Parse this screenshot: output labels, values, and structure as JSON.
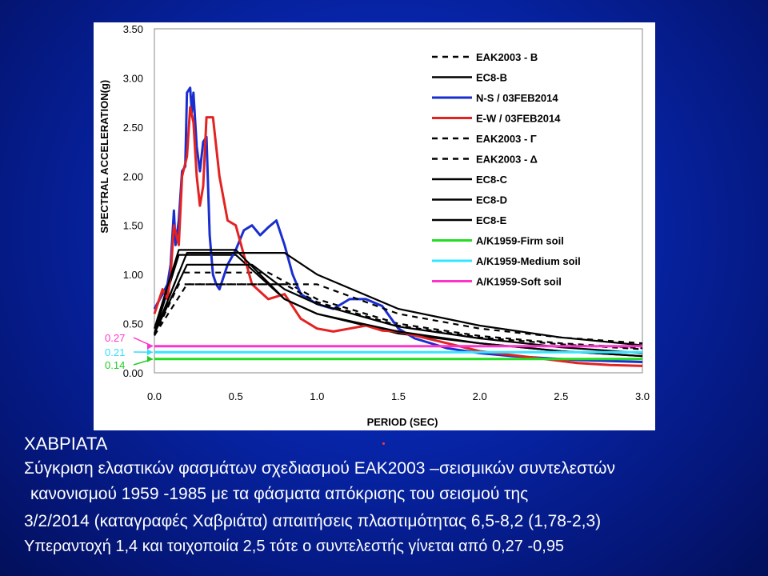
{
  "chart_data": {
    "type": "line",
    "xlabel": "PERIOD (SEC)",
    "ylabel": "SPECTRAL ACCELERATION(g)",
    "xlim": [
      0,
      3.0
    ],
    "ylim": [
      0,
      3.5
    ],
    "x_ticks": [
      "0.0",
      "0.5",
      "1.0",
      "1.5",
      "2.0",
      "2.5",
      "3.0"
    ],
    "y_ticks": [
      "0.00",
      "0.50",
      "1.00",
      "1.50",
      "2.00",
      "2.50",
      "3.00",
      "3.50"
    ],
    "y_marks": [
      {
        "label": "0.27",
        "value": 0.27,
        "color": "#ff33cc"
      },
      {
        "label": "0.21",
        "value": 0.21,
        "color": "#33ddff"
      },
      {
        "label": "0.14",
        "value": 0.14,
        "color": "#22cc22"
      }
    ],
    "legend_position": "top-right",
    "series": [
      {
        "name": "ΕΑΚ2003 - Β",
        "color": "#000000",
        "dash": "dashed",
        "x": [
          0,
          0.15,
          0.5,
          0.7,
          1.0,
          1.5,
          2.0,
          2.5,
          3.0
        ],
        "y": [
          0.38,
          1.02,
          1.02,
          1.02,
          0.75,
          0.5,
          0.375,
          0.3,
          0.25
        ]
      },
      {
        "name": "EC8-B",
        "color": "#000000",
        "dash": "solid",
        "x": [
          0,
          0.15,
          0.5,
          0.8,
          1.0,
          1.5,
          2.0,
          2.5,
          3.0
        ],
        "y": [
          0.4,
          1.2,
          1.2,
          0.75,
          0.6,
          0.4,
          0.3,
          0.22,
          0.17
        ]
      },
      {
        "name": "N-S / 03FEB2014",
        "color": "#1a2ecf",
        "dash": "solid",
        "x": [
          0,
          0.05,
          0.08,
          0.1,
          0.12,
          0.13,
          0.15,
          0.17,
          0.19,
          0.2,
          0.22,
          0.23,
          0.24,
          0.26,
          0.28,
          0.3,
          0.32,
          0.34,
          0.36,
          0.38,
          0.4,
          0.45,
          0.5,
          0.55,
          0.6,
          0.65,
          0.7,
          0.75,
          0.8,
          0.85,
          0.9,
          1.0,
          1.1,
          1.2,
          1.3,
          1.4,
          1.5,
          1.6,
          1.8,
          2.0,
          2.2,
          2.4,
          2.6,
          2.8,
          3.0
        ],
        "y": [
          0.65,
          0.8,
          0.9,
          1.1,
          1.65,
          1.3,
          1.55,
          2.05,
          2.1,
          2.85,
          2.9,
          2.65,
          2.85,
          2.3,
          2.05,
          2.35,
          2.4,
          1.4,
          1.0,
          0.9,
          0.85,
          1.1,
          1.25,
          1.45,
          1.5,
          1.4,
          1.48,
          1.55,
          1.3,
          1.0,
          0.8,
          0.7,
          0.65,
          0.75,
          0.75,
          0.68,
          0.45,
          0.35,
          0.25,
          0.2,
          0.17,
          0.15,
          0.13,
          0.12,
          0.11
        ]
      },
      {
        "name": "E-W / 03FEB2014",
        "color": "#e32222",
        "dash": "solid",
        "x": [
          0,
          0.05,
          0.08,
          0.1,
          0.12,
          0.15,
          0.17,
          0.2,
          0.22,
          0.24,
          0.26,
          0.28,
          0.3,
          0.32,
          0.36,
          0.4,
          0.45,
          0.5,
          0.55,
          0.6,
          0.7,
          0.8,
          0.9,
          1.0,
          1.1,
          1.2,
          1.3,
          1.4,
          1.5,
          1.6,
          1.8,
          2.0,
          2.2,
          2.4,
          2.6,
          2.8,
          3.0
        ],
        "y": [
          0.6,
          0.85,
          0.75,
          1.0,
          1.5,
          1.3,
          2.0,
          2.2,
          2.7,
          2.55,
          2.0,
          1.7,
          1.9,
          2.6,
          2.6,
          2.0,
          1.55,
          1.5,
          1.2,
          0.9,
          0.75,
          0.8,
          0.55,
          0.45,
          0.42,
          0.45,
          0.48,
          0.43,
          0.42,
          0.38,
          0.3,
          0.22,
          0.18,
          0.14,
          0.1,
          0.08,
          0.07
        ]
      },
      {
        "name": "ΕΑΚ2003 - Γ",
        "color": "#000000",
        "dash": "dashed",
        "x": [
          0,
          0.15,
          0.6,
          0.8,
          1.0,
          1.5,
          2.0,
          2.5,
          3.0
        ],
        "y": [
          0.38,
          0.9,
          0.9,
          0.9,
          0.72,
          0.48,
          0.36,
          0.29,
          0.24
        ]
      },
      {
        "name": "ΕΑΚ2003 - Δ",
        "color": "#000000",
        "dash": "dashed",
        "x": [
          0,
          0.2,
          0.8,
          1.0,
          1.5,
          2.0,
          2.5,
          3.0
        ],
        "y": [
          0.38,
          0.9,
          0.9,
          0.9,
          0.6,
          0.45,
          0.36,
          0.3
        ]
      },
      {
        "name": "EC8-C",
        "color": "#000000",
        "dash": "solid",
        "x": [
          0,
          0.2,
          0.6,
          0.8,
          1.0,
          1.5,
          2.0,
          2.5,
          3.0
        ],
        "y": [
          0.4,
          1.1,
          1.1,
          0.85,
          0.7,
          0.47,
          0.35,
          0.26,
          0.2
        ]
      },
      {
        "name": "EC8-D",
        "color": "#000000",
        "dash": "solid",
        "x": [
          0,
          0.2,
          0.8,
          1.0,
          1.5,
          2.0,
          2.5,
          3.0
        ],
        "y": [
          0.4,
          1.22,
          1.22,
          1.0,
          0.65,
          0.48,
          0.36,
          0.28
        ]
      },
      {
        "name": "EC8-E",
        "color": "#000000",
        "dash": "solid",
        "x": [
          0,
          0.15,
          0.5,
          0.8,
          1.0,
          1.5,
          2.0,
          2.5,
          3.0
        ],
        "y": [
          0.45,
          1.25,
          1.25,
          0.75,
          0.6,
          0.42,
          0.3,
          0.22,
          0.17
        ]
      },
      {
        "name": "A/K1959-Firm soil",
        "color": "#22dd22",
        "dash": "solid",
        "x": [
          0,
          3.0
        ],
        "y": [
          0.14,
          0.14
        ]
      },
      {
        "name": "A/K1959-Medium soil",
        "color": "#33e6ff",
        "dash": "solid",
        "x": [
          0,
          3.0
        ],
        "y": [
          0.21,
          0.21
        ]
      },
      {
        "name": "A/K1959-Soft soil",
        "color": "#ff33cc",
        "dash": "solid",
        "x": [
          0,
          3.0
        ],
        "y": [
          0.27,
          0.27
        ]
      }
    ]
  },
  "captions": {
    "title": "ΧΑΒΡΙΑΤΑ",
    "line1": "Σύγκριση ελαστικών φασμάτων σχεδιασμού ΕΑΚ2003 –σεισμικών συντελεστών",
    "line2": "κανονισμού 1959 -1985 με τα φάσματα απόκρισης του σεισμού της",
    "line3": "3/2/2014 (καταγραφές  Χαβριάτα)  απαιτήσεις πλαστιμότητας  6,5-8,2  (1,78-2,3)",
    "line4": "Υπεραντοχή  1,4 και τοιχοποιία 2,5 τότε ο συντελεστής γίνεται από 0,27 -0,95"
  }
}
